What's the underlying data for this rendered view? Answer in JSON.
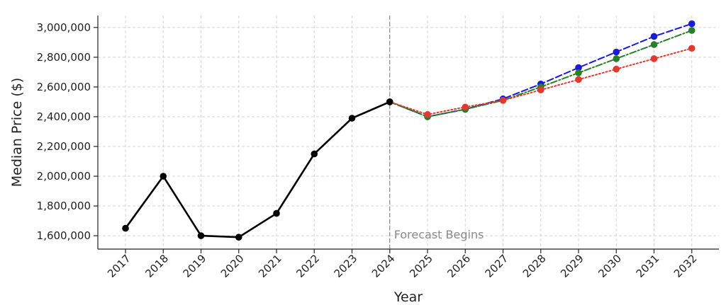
{
  "chart_data": {
    "type": "line",
    "title": "",
    "xlabel": "Year",
    "ylabel": "Median Price ($)",
    "x": [
      "2017",
      "2018",
      "2019",
      "2020",
      "2021",
      "2022",
      "2023",
      "2024",
      "2025",
      "2026",
      "2027",
      "2028",
      "2029",
      "2030",
      "2031",
      "2032"
    ],
    "ylim": [
      1510000,
      3080000
    ],
    "yticks": [
      1600000,
      1800000,
      2000000,
      2200000,
      2400000,
      2600000,
      2800000,
      3000000
    ],
    "ytick_labels": [
      "1,600,000",
      "1,800,000",
      "2,000,000",
      "2,200,000",
      "2,400,000",
      "2,600,000",
      "2,800,000",
      "3,000,000"
    ],
    "grid": true,
    "annotation": {
      "text": "Forecast Begins",
      "at_x": "2024"
    },
    "series": [
      {
        "style": "solid",
        "color": "#000000",
        "x": [
          "2017",
          "2018",
          "2019",
          "2020",
          "2021",
          "2022",
          "2023",
          "2024"
        ],
        "values": [
          1650000,
          2000000,
          1600000,
          1590000,
          1750000,
          2150000,
          2390000,
          2500000
        ]
      },
      {
        "style": "dashed",
        "color": "#1a1adb",
        "x": [
          "2024",
          "2025",
          "2026",
          "2027",
          "2028",
          "2029",
          "2030",
          "2031",
          "2032"
        ],
        "values": [
          2500000,
          2400000,
          2450000,
          2520000,
          2620000,
          2730000,
          2835000,
          2940000,
          3025000
        ]
      },
      {
        "style": "dashdot",
        "color": "#2a7d2a",
        "x": [
          "2024",
          "2025",
          "2026",
          "2027",
          "2028",
          "2029",
          "2030",
          "2031",
          "2032"
        ],
        "values": [
          2500000,
          2400000,
          2450000,
          2510000,
          2600000,
          2695000,
          2790000,
          2885000,
          2980000
        ]
      },
      {
        "style": "dotted",
        "color": "#e03a2f",
        "x": [
          "2024",
          "2025",
          "2026",
          "2027",
          "2028",
          "2029",
          "2030",
          "2031",
          "2032"
        ],
        "values": [
          2500000,
          2415000,
          2465000,
          2510000,
          2580000,
          2650000,
          2720000,
          2790000,
          2860000
        ]
      }
    ]
  }
}
